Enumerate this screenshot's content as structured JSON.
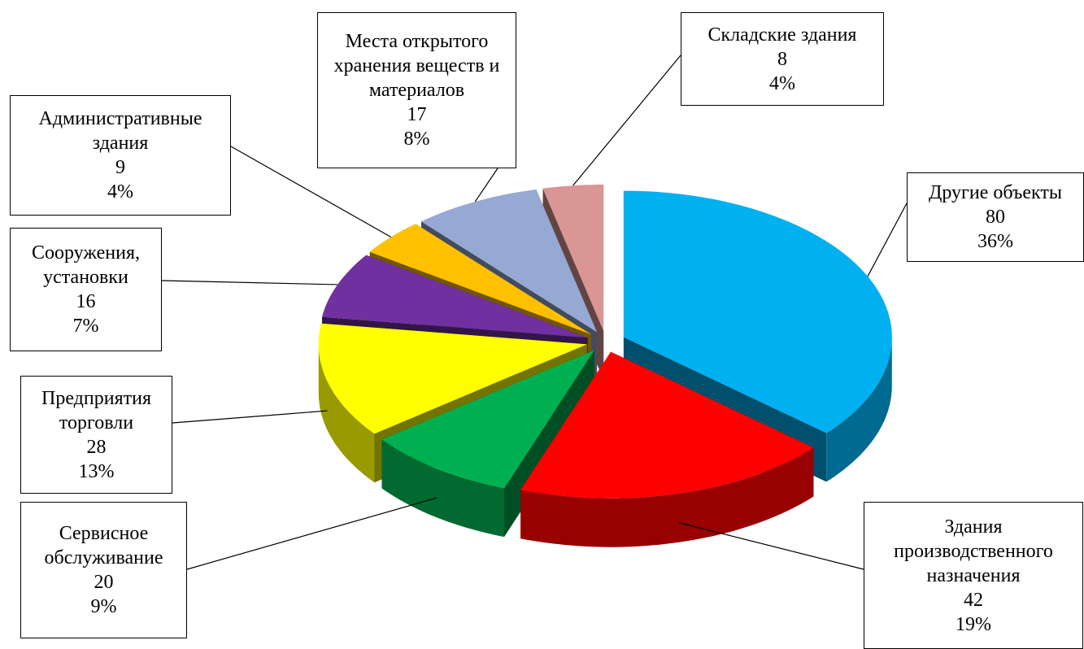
{
  "chart_data": {
    "type": "pie3d",
    "categories": [
      "Другие объекты",
      "Здания производственного назначения",
      "Сервисное обслуживание",
      "Предприятия торговли",
      "Сооружения, установки",
      "Административные здания",
      "Места открытого хранения веществ и материалов",
      "Складские здания"
    ],
    "values": [
      80,
      42,
      20,
      28,
      16,
      9,
      17,
      8
    ],
    "percent_labels": [
      "36%",
      "19%",
      "9%",
      "13%",
      "7%",
      "4%",
      "8%",
      "4%"
    ],
    "colors": [
      "#00b0f0",
      "#ff0000",
      "#00b050",
      "#ffff00",
      "#7030a0",
      "#ffc000",
      "#95a9d3",
      "#d99694"
    ]
  }
}
